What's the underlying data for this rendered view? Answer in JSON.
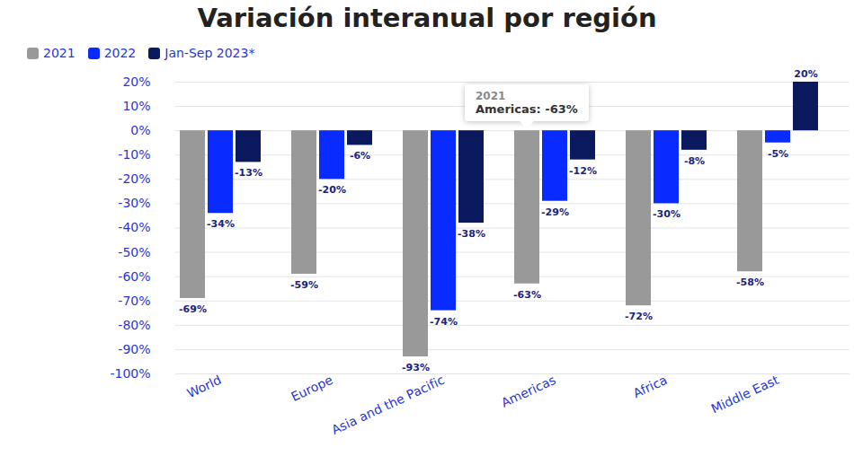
{
  "chart_data": {
    "type": "bar",
    "title": "Variación interanual por región",
    "categories": [
      "World",
      "Europe",
      "Asia and the Pacific",
      "Americas",
      "Africa",
      "Middle East"
    ],
    "series": [
      {
        "name": "2021",
        "color": "#999999",
        "values": [
          -69,
          -59,
          -93,
          -63,
          -72,
          -58
        ],
        "value_labels": [
          "-69%",
          "-59%",
          "-93%",
          "-63%",
          "-72%",
          "-58%"
        ]
      },
      {
        "name": "2022",
        "color": "#0a2bff",
        "values": [
          -34,
          -20,
          -74,
          -29,
          -30,
          -5
        ],
        "value_labels": [
          "-34%",
          "-20%",
          "-74%",
          "-29%",
          "-30%",
          "-5%"
        ]
      },
      {
        "name": "Jan-Sep 2023*",
        "color": "#0b1a5e",
        "values": [
          -13,
          -6,
          -38,
          -12,
          -8,
          20
        ],
        "value_labels": [
          "-13%",
          "-6%",
          "-38%",
          "-12%",
          "-8%",
          "20%"
        ]
      }
    ],
    "ylim": [
      -100,
      20
    ],
    "yticks": [
      {
        "value": -100,
        "label": "-100%"
      },
      {
        "value": -90,
        "label": "-90%"
      },
      {
        "value": -80,
        "label": "-80%"
      },
      {
        "value": -70,
        "label": "-70%"
      },
      {
        "value": -60,
        "label": "-60%"
      },
      {
        "value": -50,
        "label": "-50%"
      },
      {
        "value": -40,
        "label": "-40%"
      },
      {
        "value": -30,
        "label": "-30%"
      },
      {
        "value": -20,
        "label": "-20%"
      },
      {
        "value": -10,
        "label": "-10%"
      },
      {
        "value": 0,
        "label": "0%"
      },
      {
        "value": 10,
        "label": "10%"
      },
      {
        "value": 20,
        "label": "20%"
      }
    ],
    "grid": true,
    "legend": "top-left",
    "data_labels": true,
    "annotations": [
      {
        "category": "Americas",
        "series": "2021",
        "title": "2021",
        "text": "Americas: -63%"
      }
    ]
  }
}
